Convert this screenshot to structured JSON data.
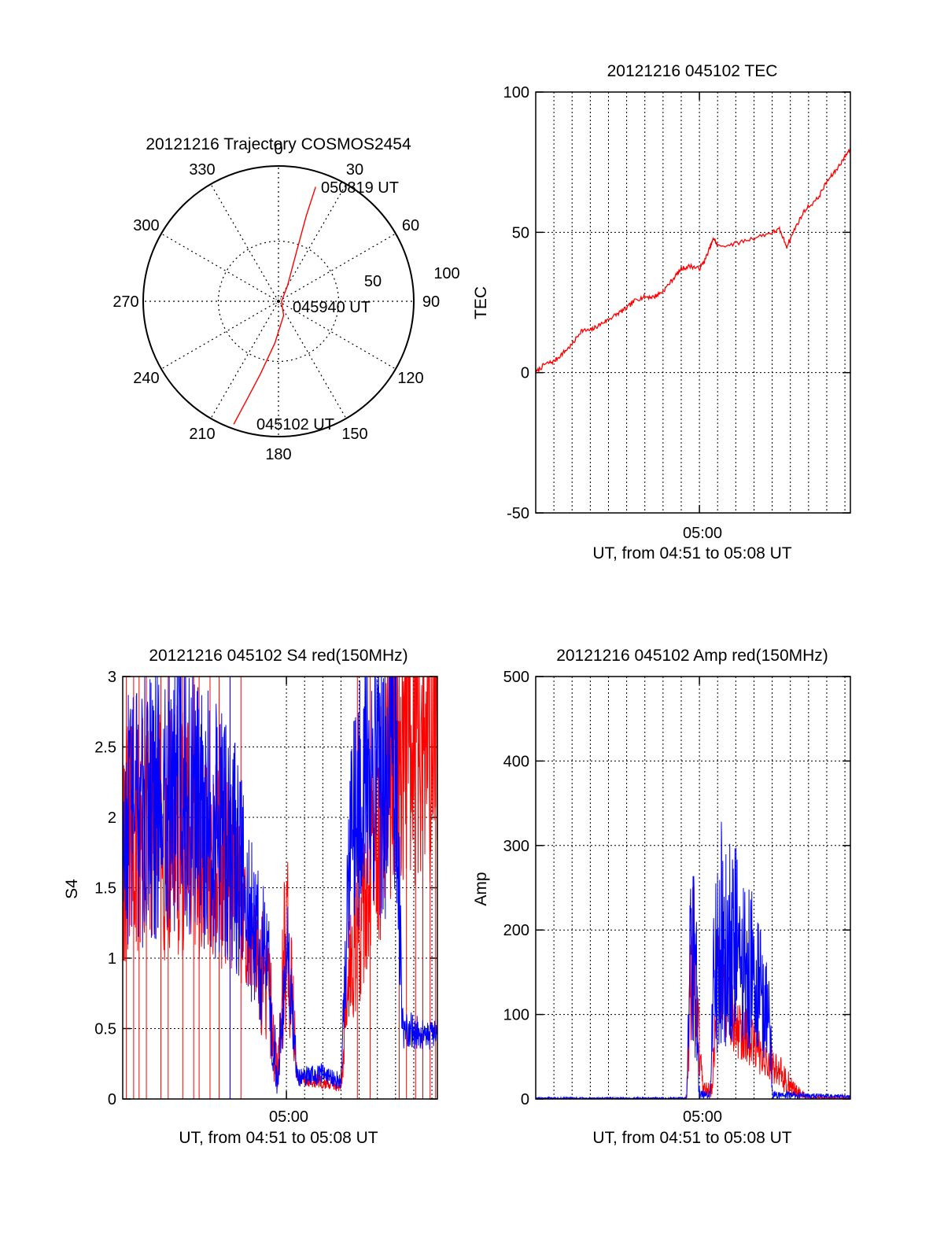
{
  "figure": {
    "background": "#ffffff",
    "colors": {
      "red": "#ff0000",
      "blue": "#0000ff",
      "axis": "#000000",
      "grid": "#000000"
    }
  },
  "chart_data": [
    {
      "type": "polar",
      "title": "20121216 Trajectory COSMOS2454",
      "azimuth_labels": [
        "0",
        "30",
        "60",
        "90",
        "120",
        "150",
        "180",
        "210",
        "240",
        "270",
        "300",
        "330"
      ],
      "radial_labels": [
        "50",
        "100"
      ],
      "elevation_rings": [
        0,
        50
      ],
      "trajectory": {
        "color": "#ff0000",
        "points": [
          {
            "az": 200,
            "el": 3
          },
          {
            "az": 198,
            "el": 20
          },
          {
            "az": 194,
            "el": 40
          },
          {
            "az": 185,
            "el": 62
          },
          {
            "az": 160,
            "el": 80
          },
          {
            "az": 90,
            "el": 88
          },
          {
            "az": 30,
            "el": 78
          },
          {
            "az": 20,
            "el": 55
          },
          {
            "az": 18,
            "el": 30
          },
          {
            "az": 18,
            "el": 10
          }
        ]
      },
      "annotations": [
        "050819 UT",
        "045940 UT",
        "045102 UT"
      ]
    },
    {
      "type": "line",
      "title": "20121216 045102 TEC",
      "xlabel": "UT, from 04:51 to 05:08 UT",
      "ylabel": "TEC",
      "x_tick_labels": [
        "05:00"
      ],
      "xlim_minutes": [
        0,
        17.3
      ],
      "x_tick_minutes": [
        9
      ],
      "x_grid_minutes": [
        1,
        2,
        3,
        4,
        5,
        6,
        7,
        8,
        9,
        10,
        11,
        12,
        13,
        14,
        15,
        16,
        17
      ],
      "ylim": [
        -50,
        100
      ],
      "yticks": [
        -50,
        0,
        50,
        100
      ],
      "series": [
        {
          "color": "#ff0000",
          "points": [
            [
              0,
              0
            ],
            [
              0.5,
              3
            ],
            [
              1.0,
              4
            ],
            [
              1.5,
              7
            ],
            [
              2.0,
              10
            ],
            [
              2.5,
              15
            ],
            [
              3.0,
              15
            ],
            [
              3.5,
              17
            ],
            [
              4.0,
              19
            ],
            [
              4.5,
              21
            ],
            [
              5.0,
              23
            ],
            [
              5.5,
              26
            ],
            [
              6.0,
              27
            ],
            [
              6.5,
              27
            ],
            [
              7.0,
              29
            ],
            [
              7.5,
              33
            ],
            [
              8.0,
              37
            ],
            [
              8.5,
              38
            ],
            [
              9.0,
              37
            ],
            [
              9.3,
              40
            ],
            [
              9.6,
              45
            ],
            [
              9.8,
              48
            ],
            [
              10.0,
              45
            ],
            [
              11.0,
              46
            ],
            [
              12.0,
              48
            ],
            [
              13.0,
              50
            ],
            [
              13.4,
              51
            ],
            [
              13.8,
              45
            ],
            [
              14.3,
              52
            ],
            [
              14.8,
              58
            ],
            [
              15.5,
              62
            ],
            [
              16.0,
              68
            ],
            [
              16.5,
              72
            ],
            [
              17.0,
              77
            ],
            [
              17.3,
              80
            ]
          ]
        }
      ]
    },
    {
      "type": "line",
      "title": "20121216 045102 S4 red(150MHz)",
      "xlabel": "UT, from 04:51 to 05:08 UT",
      "ylabel": "S4",
      "x_tick_labels": [
        "05:00"
      ],
      "xlim_minutes": [
        0,
        17.3
      ],
      "x_tick_minutes": [
        9
      ],
      "x_grid_minutes": [
        9,
        10,
        11,
        12,
        13,
        14,
        15,
        16,
        17
      ],
      "ylim": [
        0,
        3
      ],
      "yticks": [
        0,
        0.5,
        1,
        1.5,
        2,
        2.5,
        3
      ],
      "ytick_labels": [
        "0",
        "0.5",
        "1",
        "1.5",
        "2",
        "2.5",
        "3"
      ],
      "series": [
        {
          "color": "#ff0000",
          "segments": [
            [
              0,
              1.8,
              0.9
            ],
            [
              3.0,
              1.9,
              0.9
            ],
            [
              6.0,
              1.6,
              0.7
            ],
            [
              7.0,
              1.1,
              0.4
            ],
            [
              8.0,
              0.8,
              0.5
            ],
            [
              8.5,
              0.15,
              0.15
            ],
            [
              9.0,
              1.3,
              0.8
            ],
            [
              9.6,
              0.15,
              0.05
            ],
            [
              11.0,
              0.12,
              0.05
            ],
            [
              12.0,
              0.1,
              0.05
            ],
            [
              12.5,
              1.0,
              0.5
            ],
            [
              13.5,
              1.5,
              0.7
            ],
            [
              15.0,
              2.5,
              1.0
            ],
            [
              17.3,
              2.5,
              1.0
            ]
          ],
          "spikes_minutes": [
            0.2,
            0.6,
            0.9,
            1.3,
            2.1,
            2.5,
            3.3,
            3.9,
            4.2,
            4.8,
            5.3,
            5.9,
            6.5,
            12.9,
            13.6,
            15.2,
            15.6,
            16.1,
            16.5,
            16.9,
            17.2
          ]
        },
        {
          "color": "#0000ff",
          "segments": [
            [
              0,
              2.0,
              1.0
            ],
            [
              3.0,
              2.2,
              1.0
            ],
            [
              6.0,
              1.8,
              0.9
            ],
            [
              7.0,
              1.3,
              0.6
            ],
            [
              8.0,
              0.9,
              0.5
            ],
            [
              8.5,
              0.1,
              0.1
            ],
            [
              9.0,
              1.1,
              0.5
            ],
            [
              9.6,
              0.15,
              0.07
            ],
            [
              11.0,
              0.18,
              0.08
            ],
            [
              12.0,
              0.12,
              0.06
            ],
            [
              12.5,
              1.8,
              0.8
            ],
            [
              13.5,
              2.3,
              1.0
            ],
            [
              15.0,
              2.4,
              1.2
            ],
            [
              15.4,
              0.5,
              0.15
            ],
            [
              17.3,
              0.45,
              0.1
            ]
          ],
          "spikes_minutes": [
            5.9
          ]
        }
      ]
    },
    {
      "type": "line",
      "title": "20121216 045102 Amp red(150MHz)",
      "xlabel": "UT, from 04:51 to 05:08 UT",
      "ylabel": "Amp",
      "x_tick_labels": [
        "05:00"
      ],
      "xlim_minutes": [
        0,
        17.3
      ],
      "x_tick_minutes": [
        9
      ],
      "x_grid_minutes": [
        1,
        2,
        3,
        4,
        5,
        6,
        7,
        8,
        9,
        10,
        11,
        12,
        13,
        14,
        15,
        16,
        17
      ],
      "ylim": [
        0,
        500
      ],
      "yticks": [
        0,
        100,
        200,
        300,
        400,
        500
      ],
      "series": [
        {
          "color": "#ff0000",
          "segments": [
            [
              0,
              0,
              0
            ],
            [
              8.2,
              0,
              0
            ],
            [
              8.3,
              5,
              5
            ],
            [
              8.6,
              180,
              100
            ],
            [
              9.2,
              10,
              10
            ],
            [
              9.7,
              10,
              10
            ],
            [
              10.0,
              150,
              60
            ],
            [
              11.0,
              90,
              40
            ],
            [
              12.5,
              50,
              25
            ],
            [
              13.5,
              30,
              20
            ],
            [
              14.2,
              10,
              10
            ],
            [
              15.0,
              2,
              2
            ],
            [
              17.3,
              1,
              1
            ]
          ]
        },
        {
          "color": "#0000ff",
          "segments": [
            [
              0,
              1,
              1
            ],
            [
              8.3,
              1,
              1
            ],
            [
              8.5,
              200,
              120
            ],
            [
              8.8,
              150,
              120
            ],
            [
              9.0,
              5,
              5
            ],
            [
              9.6,
              5,
              5
            ],
            [
              9.8,
              150,
              100
            ],
            [
              10.3,
              200,
              150
            ],
            [
              11.5,
              170,
              110
            ],
            [
              12.5,
              120,
              70
            ],
            [
              12.9,
              80,
              60
            ],
            [
              13.0,
              5,
              5
            ],
            [
              17.3,
              3,
              2
            ]
          ]
        }
      ]
    }
  ]
}
